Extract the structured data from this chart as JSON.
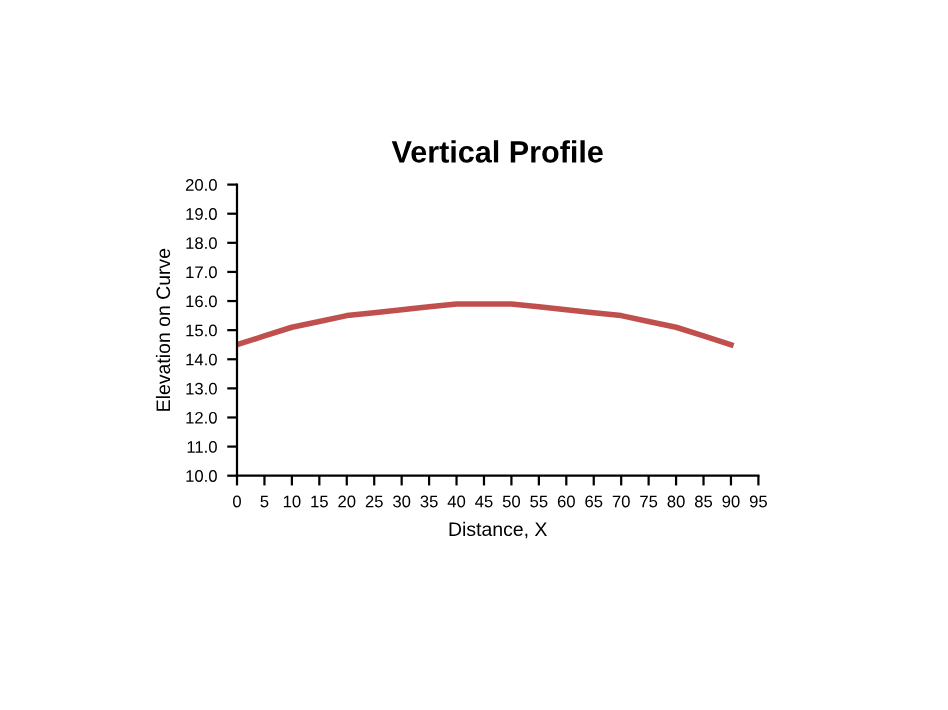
{
  "chart_data": {
    "type": "line",
    "title": "Vertical Profile",
    "xlabel": "Distance, X",
    "ylabel": "Elevation on Curve",
    "x": [
      0,
      5,
      10,
      15,
      20,
      25,
      30,
      35,
      40,
      45,
      50,
      55,
      60,
      65,
      70,
      75,
      80,
      85,
      90
    ],
    "series": [
      {
        "color": "#c0504d",
        "values": [
          14.5,
          14.8,
          15.1,
          15.3,
          15.5,
          15.6,
          15.7,
          15.8,
          15.9,
          15.9,
          15.9,
          15.8,
          15.7,
          15.6,
          15.5,
          15.3,
          15.1,
          14.8,
          14.5
        ]
      }
    ],
    "xlim": [
      0,
      95
    ],
    "xticks": [
      0,
      5,
      10,
      15,
      20,
      25,
      30,
      35,
      40,
      45,
      50,
      55,
      60,
      65,
      70,
      75,
      80,
      85,
      90,
      95
    ],
    "ylim": [
      10,
      20
    ],
    "yticks": [
      {
        "value": 10,
        "label": "10.0"
      },
      {
        "value": 11,
        "label": "11.0"
      },
      {
        "value": 12,
        "label": "12.0"
      },
      {
        "value": 13,
        "label": "13.0"
      },
      {
        "value": 14,
        "label": "14.0"
      },
      {
        "value": 15,
        "label": "15.0"
      },
      {
        "value": 16,
        "label": "16.0"
      },
      {
        "value": 17,
        "label": "17.0"
      },
      {
        "value": 18,
        "label": "18.0"
      },
      {
        "value": 19,
        "label": "19.0"
      },
      {
        "value": 20,
        "label": "20.0"
      }
    ],
    "grid": false,
    "legend": false
  }
}
